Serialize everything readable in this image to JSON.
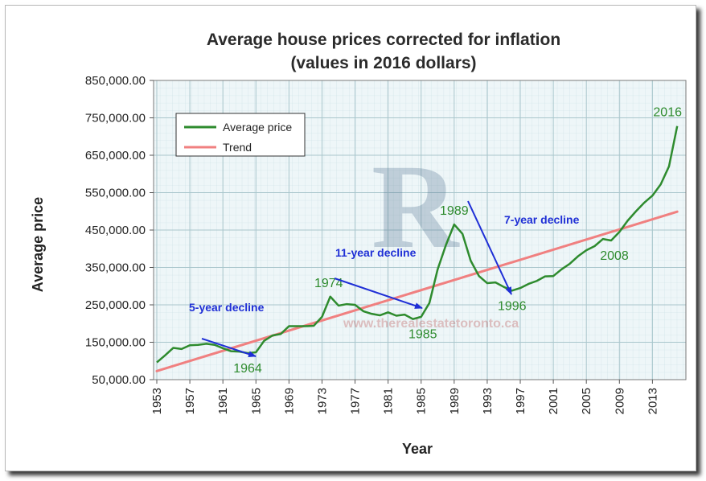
{
  "chart_data": {
    "type": "line",
    "title": "Average house prices corrected for inflation",
    "subtitle": "(values in 2016 dollars)",
    "xlabel": "Year",
    "ylabel": "Average price",
    "xlim": [
      1953,
      2016
    ],
    "ylim": [
      50000,
      850000
    ],
    "y_ticks": [
      "850,000.00",
      "750,000.00",
      "650,000.00",
      "550,000.00",
      "450,000.00",
      "350,000.00",
      "250,000.00",
      "150,000.00",
      "50,000.00"
    ],
    "y_tick_values": [
      850000,
      750000,
      650000,
      550000,
      450000,
      350000,
      250000,
      150000,
      50000
    ],
    "x_ticks": [
      "1953",
      "1957",
      "1961",
      "1965",
      "1969",
      "1973",
      "1977",
      "1981",
      "1985",
      "1989",
      "1993",
      "1997",
      "2001",
      "2005",
      "2009",
      "2013"
    ],
    "x_tick_values": [
      1953,
      1957,
      1961,
      1965,
      1969,
      1973,
      1977,
      1981,
      1985,
      1989,
      1993,
      1997,
      2001,
      2005,
      2009,
      2013
    ],
    "grid": true,
    "legend_position": "top-left",
    "series": [
      {
        "name": "Average price",
        "color": "#2e8b2e",
        "x": [
          1953,
          1954,
          1955,
          1956,
          1957,
          1958,
          1959,
          1960,
          1961,
          1962,
          1963,
          1964,
          1965,
          1966,
          1967,
          1968,
          1969,
          1970,
          1971,
          1972,
          1973,
          1974,
          1975,
          1976,
          1977,
          1978,
          1979,
          1980,
          1981,
          1982,
          1983,
          1984,
          1985,
          1986,
          1987,
          1988,
          1989,
          1990,
          1991,
          1992,
          1993,
          1994,
          1995,
          1996,
          1997,
          1998,
          1999,
          2000,
          2001,
          2002,
          2003,
          2004,
          2005,
          2006,
          2007,
          2008,
          2009,
          2010,
          2011,
          2012,
          2013,
          2014,
          2015,
          2016
        ],
        "values": [
          96000,
          115000,
          135000,
          132000,
          142000,
          143000,
          146000,
          143000,
          134000,
          126000,
          125000,
          121000,
          123000,
          154000,
          168000,
          172000,
          193000,
          193000,
          193000,
          194000,
          218000,
          272000,
          248000,
          252000,
          250000,
          233000,
          226000,
          222000,
          230000,
          221000,
          224000,
          212000,
          218000,
          255000,
          345000,
          410000,
          465000,
          440000,
          368000,
          327000,
          308000,
          310000,
          298000,
          288000,
          295000,
          306000,
          314000,
          326000,
          327000,
          345000,
          360000,
          380000,
          396000,
          407000,
          426000,
          422000,
          445000,
          475000,
          500000,
          523000,
          542000,
          572000,
          620000,
          728000
        ]
      },
      {
        "name": "Trend",
        "color": "#f08080",
        "x": [
          1953,
          2016
        ],
        "values": [
          73000,
          499000
        ]
      }
    ],
    "annotations": [
      {
        "text": "1964",
        "x": 1964,
        "y": 121000
      },
      {
        "text": "1974",
        "x": 1974,
        "y": 272000
      },
      {
        "text": "1985",
        "x": 1985,
        "y": 212000
      },
      {
        "text": "1989",
        "x": 1989,
        "y": 465000
      },
      {
        "text": "1996",
        "x": 1996,
        "y": 288000
      },
      {
        "text": "2008",
        "x": 2008,
        "y": 422000
      },
      {
        "text": "2016",
        "x": 2016,
        "y": 728000
      }
    ],
    "declines": [
      {
        "label": "5-year decline"
      },
      {
        "label": "11-year decline"
      },
      {
        "label": "7-year decline"
      }
    ]
  },
  "watermark": {
    "logo_letter": "R",
    "site_text": "www.therealestatetoronto.ca"
  }
}
